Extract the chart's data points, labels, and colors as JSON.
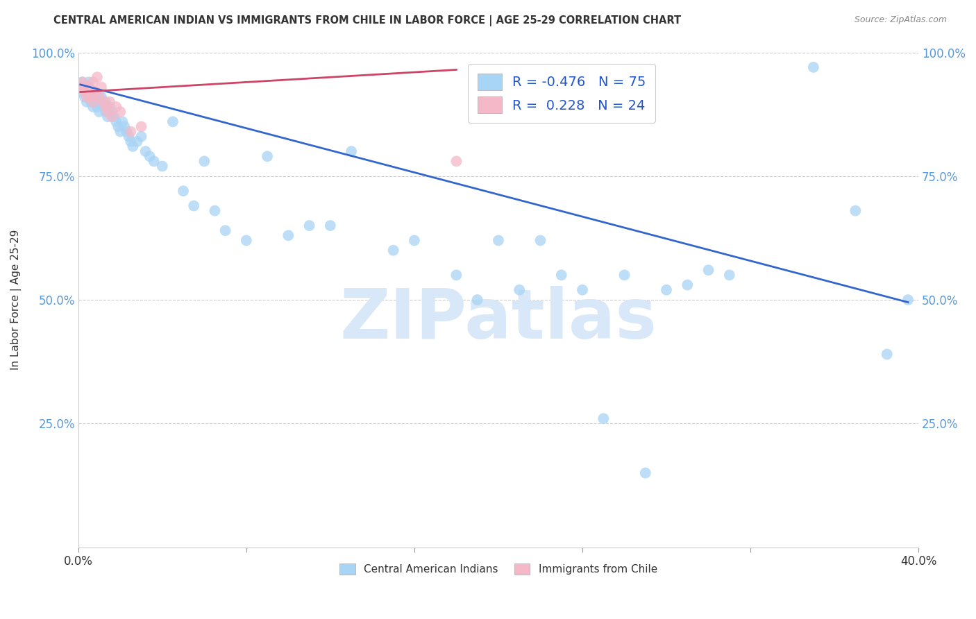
{
  "title": "CENTRAL AMERICAN INDIAN VS IMMIGRANTS FROM CHILE IN LABOR FORCE | AGE 25-29 CORRELATION CHART",
  "source": "Source: ZipAtlas.com",
  "ylabel": "In Labor Force | Age 25-29",
  "xlim": [
    0.0,
    0.4
  ],
  "ylim": [
    0.0,
    1.0
  ],
  "xticks": [
    0.0,
    0.08,
    0.16,
    0.24,
    0.32,
    0.4
  ],
  "yticks": [
    0.0,
    0.25,
    0.5,
    0.75,
    1.0
  ],
  "xticklabels": [
    "0.0%",
    "",
    "",
    "",
    "",
    "40.0%"
  ],
  "yticklabels_left": [
    "",
    "25.0%",
    "50.0%",
    "75.0%",
    "100.0%"
  ],
  "yticklabels_right": [
    "",
    "25.0%",
    "50.0%",
    "75.0%",
    "100.0%"
  ],
  "blue_R": -0.476,
  "blue_N": 75,
  "pink_R": 0.228,
  "pink_N": 24,
  "blue_color": "#A8D4F5",
  "pink_color": "#F5B8C8",
  "blue_line_color": "#3366CC",
  "pink_line_color": "#CC4466",
  "watermark_text": "ZIPatlas",
  "watermark_color": "#D8E8F8",
  "background_color": "#FFFFFF",
  "grid_color": "#CCCCCC",
  "blue_x": [
    0.001,
    0.002,
    0.002,
    0.003,
    0.003,
    0.004,
    0.004,
    0.005,
    0.005,
    0.005,
    0.006,
    0.006,
    0.007,
    0.007,
    0.008,
    0.008,
    0.009,
    0.009,
    0.01,
    0.01,
    0.011,
    0.012,
    0.013,
    0.013,
    0.014,
    0.015,
    0.016,
    0.017,
    0.018,
    0.019,
    0.02,
    0.021,
    0.022,
    0.023,
    0.024,
    0.025,
    0.026,
    0.028,
    0.03,
    0.032,
    0.034,
    0.036,
    0.04,
    0.045,
    0.05,
    0.055,
    0.06,
    0.065,
    0.07,
    0.08,
    0.09,
    0.1,
    0.11,
    0.12,
    0.13,
    0.15,
    0.16,
    0.18,
    0.19,
    0.2,
    0.21,
    0.22,
    0.23,
    0.24,
    0.25,
    0.26,
    0.27,
    0.28,
    0.29,
    0.3,
    0.31,
    0.35,
    0.37,
    0.385,
    0.395
  ],
  "blue_y": [
    0.93,
    0.94,
    0.92,
    0.91,
    0.93,
    0.92,
    0.9,
    0.94,
    0.93,
    0.91,
    0.92,
    0.9,
    0.91,
    0.89,
    0.92,
    0.9,
    0.91,
    0.89,
    0.9,
    0.88,
    0.91,
    0.89,
    0.9,
    0.88,
    0.87,
    0.89,
    0.88,
    0.87,
    0.86,
    0.85,
    0.84,
    0.86,
    0.85,
    0.84,
    0.83,
    0.82,
    0.81,
    0.82,
    0.83,
    0.8,
    0.79,
    0.78,
    0.77,
    0.86,
    0.72,
    0.69,
    0.78,
    0.68,
    0.64,
    0.62,
    0.79,
    0.63,
    0.65,
    0.65,
    0.8,
    0.6,
    0.62,
    0.55,
    0.5,
    0.62,
    0.52,
    0.62,
    0.55,
    0.52,
    0.26,
    0.55,
    0.15,
    0.52,
    0.53,
    0.56,
    0.55,
    0.97,
    0.68,
    0.39,
    0.5
  ],
  "pink_x": [
    0.001,
    0.002,
    0.003,
    0.003,
    0.004,
    0.005,
    0.005,
    0.006,
    0.007,
    0.007,
    0.008,
    0.009,
    0.01,
    0.011,
    0.012,
    0.013,
    0.014,
    0.015,
    0.016,
    0.018,
    0.02,
    0.025,
    0.03,
    0.18
  ],
  "pink_y": [
    0.93,
    0.94,
    0.92,
    0.93,
    0.91,
    0.93,
    0.92,
    0.91,
    0.94,
    0.9,
    0.92,
    0.95,
    0.91,
    0.93,
    0.9,
    0.89,
    0.88,
    0.9,
    0.87,
    0.89,
    0.88,
    0.84,
    0.85,
    0.78
  ],
  "blue_line_x": [
    0.001,
    0.395
  ],
  "blue_line_y": [
    0.935,
    0.495
  ],
  "pink_line_x": [
    0.001,
    0.18
  ],
  "pink_line_y": [
    0.92,
    0.965
  ]
}
